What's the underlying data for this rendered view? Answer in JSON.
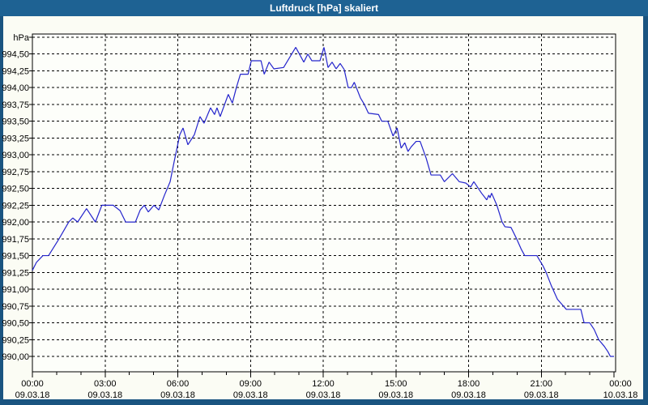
{
  "window": {
    "title": "Luftdruck [hPa] skaliert"
  },
  "colors": {
    "title_bar": "#1e6293",
    "window_border": "#1a5480",
    "content_bg": "#fbfcf4",
    "plot_bg": "#fdfefa",
    "grid": "#000000",
    "line": "#2424cc",
    "title_text": "#ffffff",
    "label_text": "#000000"
  },
  "chart_data": {
    "type": "line",
    "title": "Luftdruck [hPa] skaliert",
    "y_unit_label": "hPa",
    "y_gridline_top": 994.75,
    "y_gridline_bottom": 990.0,
    "y_step": 0.25,
    "y_tick_labels": [
      "994,50",
      "994,25",
      "994,00",
      "993,75",
      "993,50",
      "993,25",
      "993,00",
      "992,75",
      "992,50",
      "992,25",
      "992,00",
      "991,75",
      "991,50",
      "991,25",
      "991,00",
      "990,75",
      "990,50",
      "990,25",
      "990,00"
    ],
    "x_axis": {
      "range_minutes": [
        0,
        1440
      ],
      "major_step_minutes": 180,
      "minor_step_minutes": 60,
      "ticks": [
        {
          "time": "00:00",
          "date": "09.03.18"
        },
        {
          "time": "03:00",
          "date": "09.03.18"
        },
        {
          "time": "06:00",
          "date": "09.03.18"
        },
        {
          "time": "09:00",
          "date": "09.03.18"
        },
        {
          "time": "12:00",
          "date": "09.03.18"
        },
        {
          "time": "15:00",
          "date": "09.03.18"
        },
        {
          "time": "18:00",
          "date": "09.03.18"
        },
        {
          "time": "21:00",
          "date": "09.03.18"
        },
        {
          "time": "00:00",
          "date": "10.03.18"
        }
      ]
    },
    "grid": "dashed",
    "legend": "none",
    "series": [
      {
        "name": "Luftdruck",
        "points": [
          [
            0,
            991.28
          ],
          [
            10,
            991.4
          ],
          [
            26,
            991.5
          ],
          [
            40,
            991.5
          ],
          [
            66,
            991.75
          ],
          [
            90,
            992.0
          ],
          [
            100,
            992.06
          ],
          [
            112,
            992.0
          ],
          [
            134,
            992.2
          ],
          [
            156,
            992.0
          ],
          [
            172,
            992.25
          ],
          [
            200,
            992.25
          ],
          [
            217,
            992.17
          ],
          [
            231,
            992.0
          ],
          [
            255,
            992.0
          ],
          [
            267,
            992.18
          ],
          [
            277,
            992.25
          ],
          [
            287,
            992.15
          ],
          [
            301,
            992.25
          ],
          [
            313,
            992.18
          ],
          [
            327,
            992.4
          ],
          [
            341,
            992.6
          ],
          [
            351,
            992.9
          ],
          [
            365,
            993.3
          ],
          [
            373,
            993.4
          ],
          [
            385,
            993.15
          ],
          [
            401,
            993.3
          ],
          [
            415,
            993.57
          ],
          [
            425,
            993.47
          ],
          [
            441,
            993.7
          ],
          [
            451,
            993.6
          ],
          [
            457,
            993.7
          ],
          [
            465,
            993.57
          ],
          [
            485,
            993.9
          ],
          [
            495,
            993.77
          ],
          [
            505,
            994.0
          ],
          [
            515,
            994.2
          ],
          [
            534,
            994.2
          ],
          [
            542,
            994.4
          ],
          [
            566,
            994.4
          ],
          [
            574,
            994.2
          ],
          [
            586,
            994.38
          ],
          [
            598,
            994.28
          ],
          [
            622,
            994.3
          ],
          [
            652,
            994.6
          ],
          [
            672,
            994.38
          ],
          [
            682,
            994.5
          ],
          [
            692,
            994.4
          ],
          [
            712,
            994.4
          ],
          [
            722,
            994.6
          ],
          [
            732,
            994.3
          ],
          [
            742,
            994.38
          ],
          [
            752,
            994.28
          ],
          [
            762,
            994.36
          ],
          [
            772,
            994.27
          ],
          [
            782,
            994.0
          ],
          [
            790,
            994.0
          ],
          [
            797,
            994.08
          ],
          [
            812,
            993.85
          ],
          [
            822,
            993.75
          ],
          [
            832,
            993.62
          ],
          [
            857,
            993.6
          ],
          [
            865,
            993.5
          ],
          [
            880,
            993.5
          ],
          [
            893,
            993.28
          ],
          [
            903,
            993.4
          ],
          [
            913,
            993.1
          ],
          [
            922,
            993.18
          ],
          [
            930,
            993.05
          ],
          [
            938,
            993.12
          ],
          [
            950,
            993.2
          ],
          [
            960,
            993.2
          ],
          [
            975,
            992.95
          ],
          [
            987,
            992.7
          ],
          [
            1010,
            992.7
          ],
          [
            1020,
            992.6
          ],
          [
            1040,
            992.72
          ],
          [
            1057,
            992.6
          ],
          [
            1073,
            992.58
          ],
          [
            1085,
            992.52
          ],
          [
            1093,
            992.6
          ],
          [
            1112,
            992.43
          ],
          [
            1125,
            992.33
          ],
          [
            1130,
            992.4
          ],
          [
            1133,
            992.36
          ],
          [
            1137,
            992.43
          ],
          [
            1150,
            992.25
          ],
          [
            1163,
            992.0
          ],
          [
            1170,
            991.93
          ],
          [
            1185,
            991.92
          ],
          [
            1199,
            991.75
          ],
          [
            1210,
            991.6
          ],
          [
            1219,
            991.5
          ],
          [
            1249,
            991.5
          ],
          [
            1264,
            991.35
          ],
          [
            1272,
            991.25
          ],
          [
            1285,
            991.05
          ],
          [
            1300,
            990.85
          ],
          [
            1322,
            990.7
          ],
          [
            1358,
            990.7
          ],
          [
            1366,
            990.5
          ],
          [
            1380,
            990.5
          ],
          [
            1391,
            990.4
          ],
          [
            1402,
            990.25
          ],
          [
            1416,
            990.15
          ],
          [
            1425,
            990.07
          ],
          [
            1431,
            990.0
          ],
          [
            1440,
            990.0
          ]
        ]
      }
    ]
  }
}
